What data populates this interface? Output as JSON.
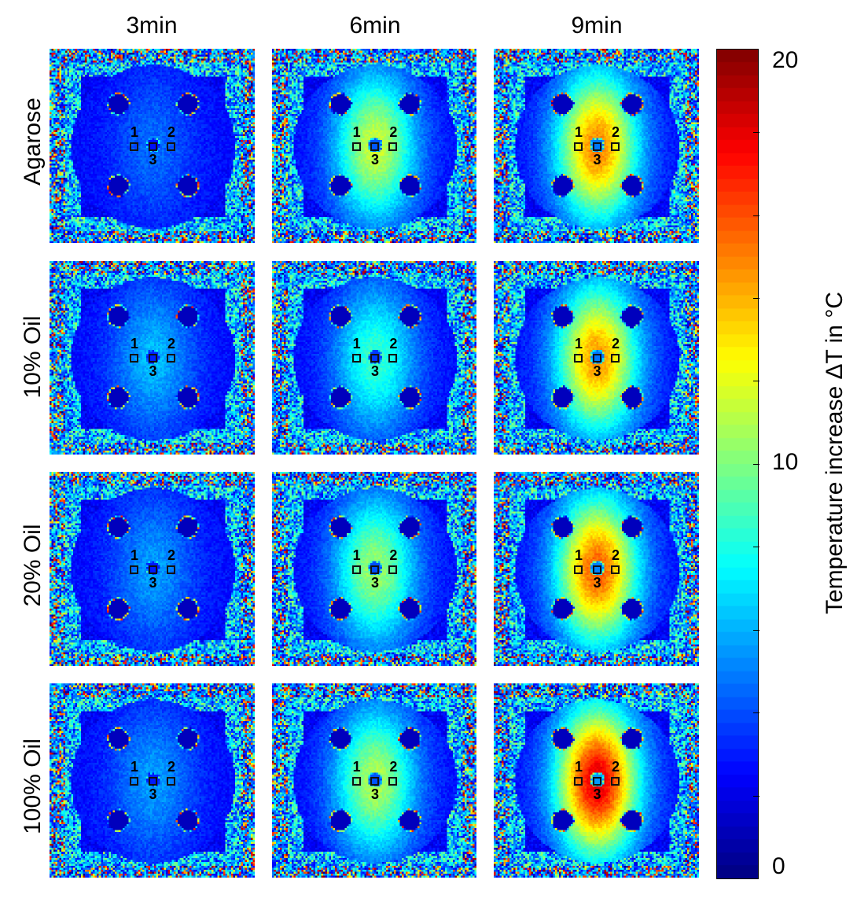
{
  "columns": [
    "3min",
    "6min",
    "9min"
  ],
  "rows": [
    "Agarose",
    "10% Oil",
    "20% Oil",
    "100% Oil"
  ],
  "roi_labels": [
    "1",
    "2",
    "3"
  ],
  "colorbar": {
    "title": "Temperature increase ΔT in °C",
    "tick_labels": [
      "20",
      "10",
      "0"
    ],
    "min": 0,
    "max": 20,
    "colormap": "jet"
  },
  "panels": [
    [
      {
        "heat": 0.1
      },
      {
        "heat": 0.45
      },
      {
        "heat": 0.62
      }
    ],
    [
      {
        "heat": 0.18
      },
      {
        "heat": 0.3
      },
      {
        "heat": 0.6
      }
    ],
    [
      {
        "heat": 0.15
      },
      {
        "heat": 0.4
      },
      {
        "heat": 0.66
      }
    ],
    [
      {
        "heat": 0.15
      },
      {
        "heat": 0.42
      },
      {
        "heat": 0.78
      }
    ]
  ]
}
